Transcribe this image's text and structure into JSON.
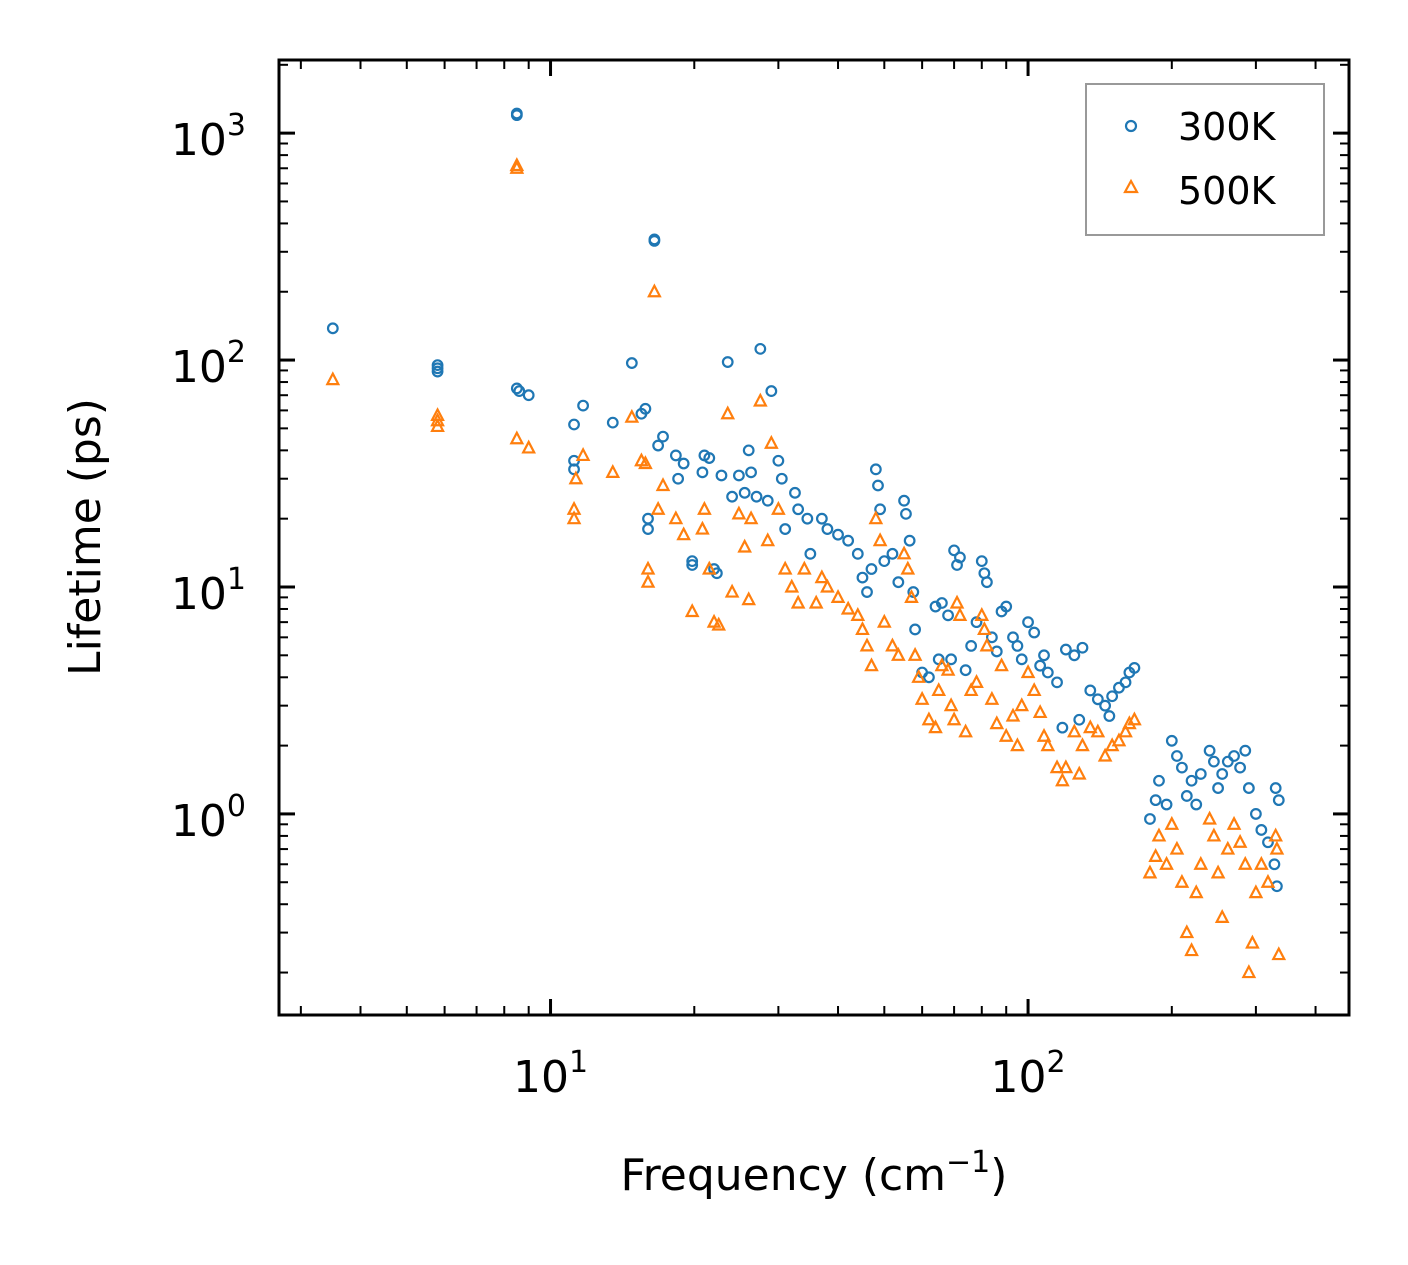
{
  "chart_data": {
    "type": "scatter",
    "xscale": "log",
    "yscale": "log",
    "xlim": [
      2.7,
      470
    ],
    "ylim": [
      0.13,
      2100
    ],
    "xlabel": "Frequency (cm",
    "xlabel_sup": "−1",
    "xlabel_tail": ")",
    "ylabel": "Lifetime (ps)",
    "xticks": [
      {
        "base": "10",
        "exp": "1",
        "value": 10
      },
      {
        "base": "10",
        "exp": "2",
        "value": 100
      }
    ],
    "yticks": [
      {
        "base": "10",
        "exp": "0",
        "value": 1
      },
      {
        "base": "10",
        "exp": "1",
        "value": 10
      },
      {
        "base": "10",
        "exp": "2",
        "value": 100
      },
      {
        "base": "10",
        "exp": "3",
        "value": 1000
      }
    ],
    "legend_position": "top-right",
    "series": [
      {
        "name": "300K",
        "marker": "circle",
        "color": "#1f77b4",
        "points": [
          [
            3.5,
            138
          ],
          [
            5.8,
            95
          ],
          [
            5.8,
            92
          ],
          [
            5.8,
            89
          ],
          [
            8.5,
            1200
          ],
          [
            8.5,
            1220
          ],
          [
            8.5,
            75
          ],
          [
            8.6,
            73
          ],
          [
            9.0,
            70
          ],
          [
            11.2,
            52
          ],
          [
            11.2,
            36
          ],
          [
            11.2,
            33
          ],
          [
            11.7,
            63
          ],
          [
            13.5,
            53
          ],
          [
            14.8,
            97
          ],
          [
            15.5,
            58
          ],
          [
            15.8,
            61
          ],
          [
            16.0,
            20
          ],
          [
            16.0,
            18
          ],
          [
            16.5,
            340
          ],
          [
            16.5,
            335
          ],
          [
            16.8,
            42
          ],
          [
            17.2,
            46
          ],
          [
            18.3,
            38
          ],
          [
            18.5,
            30
          ],
          [
            19.0,
            35
          ],
          [
            19.8,
            13
          ],
          [
            19.8,
            12.5
          ],
          [
            20.8,
            32
          ],
          [
            21.0,
            38
          ],
          [
            21.5,
            37
          ],
          [
            22.0,
            12
          ],
          [
            22.3,
            11.5
          ],
          [
            22.8,
            31
          ],
          [
            23.5,
            98
          ],
          [
            24.0,
            25
          ],
          [
            24.8,
            31
          ],
          [
            25.5,
            26
          ],
          [
            26.0,
            40
          ],
          [
            26.3,
            32
          ],
          [
            27.0,
            25
          ],
          [
            27.5,
            112
          ],
          [
            28.5,
            24
          ],
          [
            29.0,
            73
          ],
          [
            30.0,
            36
          ],
          [
            30.5,
            30
          ],
          [
            31.0,
            18
          ],
          [
            32.5,
            26
          ],
          [
            33.0,
            22
          ],
          [
            34.5,
            20
          ],
          [
            35.0,
            14
          ],
          [
            37.0,
            20
          ],
          [
            38.0,
            18
          ],
          [
            40.0,
            17
          ],
          [
            42.0,
            16
          ],
          [
            44.0,
            14
          ],
          [
            45.0,
            11
          ],
          [
            46.0,
            9.5
          ],
          [
            47.0,
            12
          ],
          [
            48.0,
            33
          ],
          [
            48.5,
            28
          ],
          [
            49.0,
            22
          ],
          [
            50.0,
            13
          ],
          [
            52.0,
            14
          ],
          [
            53.5,
            10.5
          ],
          [
            55.0,
            24
          ],
          [
            55.5,
            21
          ],
          [
            56.5,
            16
          ],
          [
            57.5,
            9.5
          ],
          [
            58.0,
            6.5
          ],
          [
            60.0,
            4.2
          ],
          [
            62.0,
            4.0
          ],
          [
            64.0,
            8.2
          ],
          [
            65.0,
            4.8
          ],
          [
            66.0,
            8.5
          ],
          [
            68.0,
            7.5
          ],
          [
            69.0,
            4.8
          ],
          [
            70.0,
            14.5
          ],
          [
            71.0,
            12.5
          ],
          [
            72.0,
            13.5
          ],
          [
            74.0,
            4.3
          ],
          [
            76.0,
            5.5
          ],
          [
            78.0,
            7.0
          ],
          [
            80.0,
            13.0
          ],
          [
            81.0,
            11.5
          ],
          [
            82.0,
            10.5
          ],
          [
            84.0,
            6.0
          ],
          [
            86.0,
            5.2
          ],
          [
            88.0,
            7.8
          ],
          [
            90.0,
            8.2
          ],
          [
            93.0,
            6.0
          ],
          [
            95.0,
            5.5
          ],
          [
            97.0,
            4.8
          ],
          [
            100.0,
            7.0
          ],
          [
            103.0,
            6.3
          ],
          [
            106.0,
            4.5
          ],
          [
            108.0,
            5.0
          ],
          [
            110.0,
            4.2
          ],
          [
            115.0,
            3.8
          ],
          [
            118.0,
            2.4
          ],
          [
            120.0,
            5.3
          ],
          [
            125.0,
            5.0
          ],
          [
            128.0,
            2.6
          ],
          [
            130.0,
            5.4
          ],
          [
            135.0,
            3.5
          ],
          [
            140.0,
            3.2
          ],
          [
            145.0,
            3.0
          ],
          [
            148.0,
            2.7
          ],
          [
            150.0,
            3.3
          ],
          [
            155.0,
            3.6
          ],
          [
            160.0,
            3.8
          ],
          [
            163.0,
            4.2
          ],
          [
            167.0,
            4.4
          ],
          [
            180.0,
            0.95
          ],
          [
            185.0,
            1.15
          ],
          [
            188.0,
            1.4
          ],
          [
            195.0,
            1.1
          ],
          [
            200.0,
            2.1
          ],
          [
            205.0,
            1.8
          ],
          [
            210.0,
            1.6
          ],
          [
            215.0,
            1.2
          ],
          [
            220.0,
            1.4
          ],
          [
            225.0,
            1.1
          ],
          [
            230.0,
            1.5
          ],
          [
            240.0,
            1.9
          ],
          [
            245.0,
            1.7
          ],
          [
            250.0,
            1.3
          ],
          [
            255.0,
            1.5
          ],
          [
            262.0,
            1.7
          ],
          [
            270.0,
            1.8
          ],
          [
            278.0,
            1.6
          ],
          [
            285.0,
            1.9
          ],
          [
            290.0,
            1.3
          ],
          [
            300.0,
            1.0
          ],
          [
            308.0,
            0.85
          ],
          [
            318.0,
            0.75
          ],
          [
            330.0,
            1.3
          ],
          [
            335.0,
            1.15
          ],
          [
            332.0,
            0.48
          ],
          [
            328.0,
            0.6
          ]
        ]
      },
      {
        "name": "500K",
        "marker": "triangle",
        "color": "#ff7f0e",
        "points": [
          [
            3.5,
            82
          ],
          [
            5.8,
            57
          ],
          [
            5.8,
            54
          ],
          [
            5.8,
            51
          ],
          [
            8.5,
            720
          ],
          [
            8.5,
            700
          ],
          [
            8.5,
            45
          ],
          [
            9.0,
            41
          ],
          [
            11.2,
            22
          ],
          [
            11.2,
            20
          ],
          [
            11.3,
            30
          ],
          [
            11.7,
            38
          ],
          [
            13.5,
            32
          ],
          [
            14.8,
            56
          ],
          [
            15.5,
            36
          ],
          [
            15.8,
            35
          ],
          [
            16.0,
            12
          ],
          [
            16.0,
            10.5
          ],
          [
            16.5,
            200
          ],
          [
            16.8,
            22
          ],
          [
            17.2,
            28
          ],
          [
            18.3,
            20
          ],
          [
            19.0,
            17
          ],
          [
            19.8,
            7.8
          ],
          [
            20.8,
            18
          ],
          [
            21.0,
            22
          ],
          [
            21.5,
            12
          ],
          [
            22.0,
            7.0
          ],
          [
            22.5,
            6.8
          ],
          [
            23.5,
            58
          ],
          [
            24.0,
            9.5
          ],
          [
            24.8,
            21
          ],
          [
            25.5,
            15
          ],
          [
            26.0,
            8.8
          ],
          [
            26.3,
            20
          ],
          [
            27.5,
            66
          ],
          [
            28.5,
            16
          ],
          [
            29.0,
            43
          ],
          [
            30.0,
            22
          ],
          [
            31.0,
            12
          ],
          [
            32.0,
            10
          ],
          [
            33.0,
            8.5
          ],
          [
            34.0,
            12
          ],
          [
            36.0,
            8.5
          ],
          [
            37.0,
            11
          ],
          [
            38.0,
            10
          ],
          [
            40.0,
            9
          ],
          [
            42.0,
            8
          ],
          [
            44.0,
            7.5
          ],
          [
            45.0,
            6.5
          ],
          [
            46.0,
            5.5
          ],
          [
            47.0,
            4.5
          ],
          [
            48.0,
            20
          ],
          [
            49.0,
            16
          ],
          [
            50.0,
            7
          ],
          [
            52.0,
            5.5
          ],
          [
            53.5,
            5
          ],
          [
            55.0,
            14
          ],
          [
            56.0,
            12
          ],
          [
            57.0,
            9
          ],
          [
            58.0,
            5
          ],
          [
            59.0,
            4
          ],
          [
            60.0,
            3.2
          ],
          [
            62.0,
            2.6
          ],
          [
            64.0,
            2.4
          ],
          [
            65.0,
            3.5
          ],
          [
            66.0,
            4.5
          ],
          [
            68.0,
            4.3
          ],
          [
            69.0,
            3.0
          ],
          [
            70.0,
            2.6
          ],
          [
            71.0,
            8.5
          ],
          [
            72.0,
            7.5
          ],
          [
            74.0,
            2.3
          ],
          [
            76.0,
            3.5
          ],
          [
            78.0,
            3.8
          ],
          [
            80.0,
            7.5
          ],
          [
            81.0,
            6.5
          ],
          [
            82.0,
            5.5
          ],
          [
            84.0,
            3.2
          ],
          [
            86.0,
            2.5
          ],
          [
            88.0,
            4.5
          ],
          [
            90.0,
            2.2
          ],
          [
            93.0,
            2.7
          ],
          [
            95.0,
            2.0
          ],
          [
            97.0,
            3.0
          ],
          [
            100.0,
            4.2
          ],
          [
            103.0,
            3.5
          ],
          [
            106.0,
            2.8
          ],
          [
            108.0,
            2.2
          ],
          [
            110.0,
            2.0
          ],
          [
            115.0,
            1.6
          ],
          [
            118.0,
            1.4
          ],
          [
            120.0,
            1.6
          ],
          [
            125.0,
            2.3
          ],
          [
            128.0,
            1.5
          ],
          [
            130.0,
            2.0
          ],
          [
            135.0,
            2.4
          ],
          [
            140.0,
            2.3
          ],
          [
            145.0,
            1.8
          ],
          [
            150.0,
            2.0
          ],
          [
            155.0,
            2.1
          ],
          [
            160.0,
            2.3
          ],
          [
            163.0,
            2.5
          ],
          [
            167.0,
            2.6
          ],
          [
            180.0,
            0.55
          ],
          [
            185.0,
            0.65
          ],
          [
            188.0,
            0.8
          ],
          [
            195.0,
            0.6
          ],
          [
            200.0,
            0.9
          ],
          [
            205.0,
            0.7
          ],
          [
            210.0,
            0.5
          ],
          [
            215.0,
            0.3
          ],
          [
            220.0,
            0.25
          ],
          [
            225.0,
            0.45
          ],
          [
            230.0,
            0.6
          ],
          [
            240.0,
            0.95
          ],
          [
            245.0,
            0.8
          ],
          [
            250.0,
            0.55
          ],
          [
            255.0,
            0.35
          ],
          [
            262.0,
            0.7
          ],
          [
            270.0,
            0.9
          ],
          [
            278.0,
            0.75
          ],
          [
            285.0,
            0.6
          ],
          [
            290.0,
            0.2
          ],
          [
            295.0,
            0.27
          ],
          [
            300.0,
            0.45
          ],
          [
            308.0,
            0.6
          ],
          [
            318.0,
            0.5
          ],
          [
            330.0,
            0.8
          ],
          [
            335.0,
            0.24
          ],
          [
            332.0,
            0.7
          ]
        ]
      }
    ]
  }
}
